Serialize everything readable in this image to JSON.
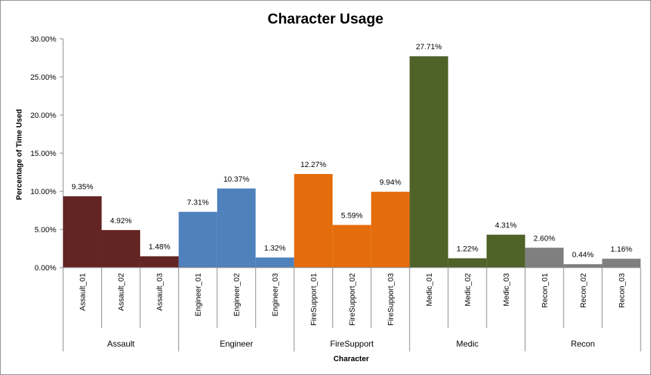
{
  "chart_data": {
    "type": "bar",
    "title": "Character Usage",
    "xlabel": "Character",
    "ylabel": "Percentage of Time Used",
    "ylim": [
      0,
      30
    ],
    "yticks": [
      "0.00%",
      "5.00%",
      "10.00%",
      "15.00%",
      "20.00%",
      "25.00%",
      "30.00%"
    ],
    "grid": false,
    "legend": "none",
    "groups": [
      {
        "name": "Assault",
        "color": "#632523"
      },
      {
        "name": "Engineer",
        "color": "#4f81bd"
      },
      {
        "name": "FireSupport",
        "color": "#e46c0a"
      },
      {
        "name": "Medic",
        "color": "#4f6228"
      },
      {
        "name": "Recon",
        "color": "#7f7f7f"
      }
    ],
    "categories": [
      "Assault_01",
      "Assault_02",
      "Assault_03",
      "Engineer_01",
      "Engineer_02",
      "Engineer_03",
      "FireSupport_01",
      "FireSupport_02",
      "FireSupport_03",
      "Medic_01",
      "Medic_02",
      "Medic_03",
      "Recon_01",
      "Recon_02",
      "Recon_03"
    ],
    "values": [
      9.35,
      4.92,
      1.48,
      7.31,
      10.37,
      1.32,
      12.27,
      5.59,
      9.94,
      27.71,
      1.22,
      4.31,
      2.6,
      0.44,
      1.16
    ],
    "data_labels": [
      "9.35%",
      "4.92%",
      "1.48%",
      "7.31%",
      "10.37%",
      "1.32%",
      "12.27%",
      "5.59%",
      "9.94%",
      "27.71%",
      "1.22%",
      "4.31%",
      "2.60%",
      "0.44%",
      "1.16%"
    ]
  }
}
